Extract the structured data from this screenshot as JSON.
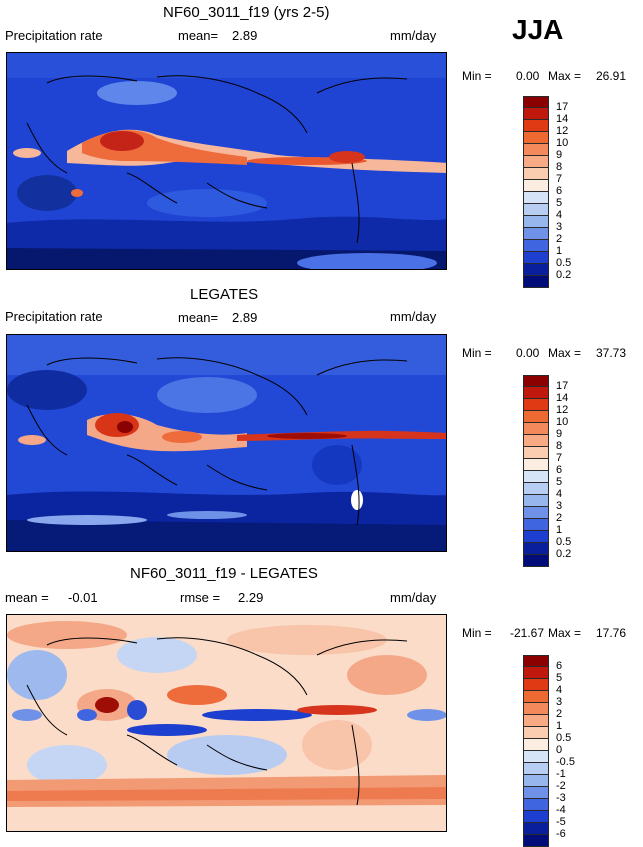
{
  "season": "JJA",
  "panels": [
    {
      "title": "NF60_3011_f19 (yrs 2-5)",
      "left_label": "Precipitation rate",
      "mean_label": "mean=",
      "mean_value": "2.89",
      "units": "mm/day",
      "min_label": "Min =",
      "min_value": "0.00",
      "max_label": "Max =",
      "max_value": "26.91"
    },
    {
      "title": "LEGATES",
      "left_label": "Precipitation rate",
      "mean_label": "mean=",
      "mean_value": "2.89",
      "units": "mm/day",
      "min_label": "Min =",
      "min_value": "0.00",
      "max_label": "Max =",
      "max_value": "37.73"
    },
    {
      "title": "NF60_3011_f19 - LEGATES",
      "mean_label": "mean =",
      "mean_value": "-0.01",
      "rmse_label": "rmse =",
      "rmse_value": "2.29",
      "units": "mm/day",
      "min_label": "Min =",
      "min_value": "-21.67",
      "max_label": "Max =",
      "max_value": "17.76"
    }
  ],
  "chart_data": [
    {
      "type": "heatmap",
      "title": "NF60_3011_f19 (yrs 2-5)",
      "variable": "Precipitation rate",
      "units": "mm/day",
      "mean": 2.89,
      "min": 0.0,
      "max": 26.91,
      "colorbar_levels": [
        "17",
        "14",
        "12",
        "10",
        "9",
        "8",
        "7",
        "6",
        "5",
        "4",
        "3",
        "2",
        "1",
        "0.5",
        "0.2"
      ],
      "colorbar_colors": [
        "#8b0000",
        "#c0180c",
        "#e03a14",
        "#ef6a32",
        "#f48a5c",
        "#f8aa84",
        "#fbcdb0",
        "#fbeee0",
        "#d6e4f7",
        "#b7cef2",
        "#98b6ee",
        "#6f92e8",
        "#3f66e0",
        "#1c3fcf",
        "#0a1f9c",
        "#000c78"
      ]
    },
    {
      "type": "heatmap",
      "title": "LEGATES",
      "variable": "Precipitation rate",
      "units": "mm/day",
      "mean": 2.89,
      "min": 0.0,
      "max": 37.73,
      "colorbar_levels": [
        "17",
        "14",
        "12",
        "10",
        "9",
        "8",
        "7",
        "6",
        "5",
        "4",
        "3",
        "2",
        "1",
        "0.5",
        "0.2"
      ],
      "colorbar_colors": [
        "#8b0000",
        "#c0180c",
        "#e03a14",
        "#ef6a32",
        "#f48a5c",
        "#f8aa84",
        "#fbcdb0",
        "#fbeee0",
        "#d6e4f7",
        "#b7cef2",
        "#98b6ee",
        "#6f92e8",
        "#3f66e0",
        "#1c3fcf",
        "#0a1f9c",
        "#000c78"
      ]
    },
    {
      "type": "heatmap",
      "title": "NF60_3011_f19 - LEGATES",
      "units": "mm/day",
      "mean": -0.01,
      "rmse": 2.29,
      "min": -21.67,
      "max": 17.76,
      "colorbar_levels": [
        "6",
        "5",
        "4",
        "3",
        "2",
        "1",
        "0.5",
        "0",
        "-0.5",
        "-1",
        "-2",
        "-3",
        "-4",
        "-5",
        "-6"
      ],
      "colorbar_colors": [
        "#8b0000",
        "#c0180c",
        "#e03a14",
        "#ef6a32",
        "#f48a5c",
        "#f8aa84",
        "#fbcdb0",
        "#fbeee0",
        "#d6e4f7",
        "#b7cef2",
        "#98b6ee",
        "#6f92e8",
        "#3f66e0",
        "#1c3fcf",
        "#0a1f9c",
        "#000c78"
      ]
    }
  ]
}
